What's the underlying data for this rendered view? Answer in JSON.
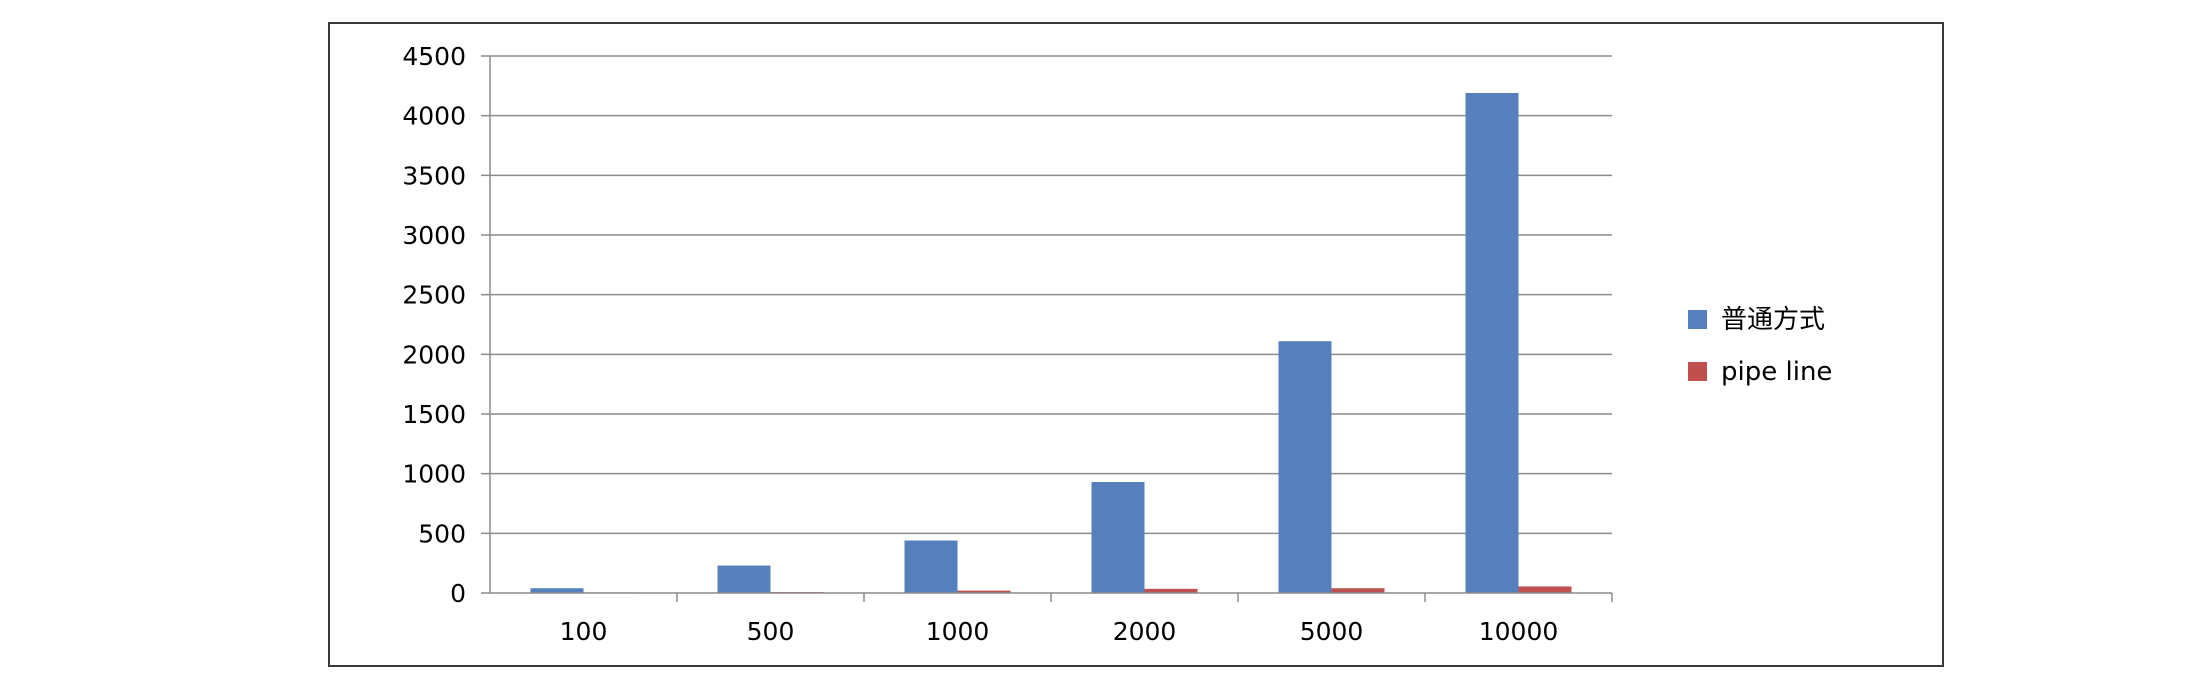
{
  "chart_data": {
    "type": "bar",
    "categories": [
      "100",
      "500",
      "1000",
      "2000",
      "5000",
      "10000"
    ],
    "series": [
      {
        "name": "普通方式",
        "color": "#5680bb",
        "values": [
          40,
          230,
          440,
          930,
          2110,
          4190
        ]
      },
      {
        "name": "pipe line",
        "color": "#c0504d",
        "values": [
          5,
          8,
          20,
          35,
          40,
          55
        ]
      }
    ],
    "yticks": [
      "0",
      "500",
      "1000",
      "1500",
      "2000",
      "2500",
      "3000",
      "3500",
      "4000",
      "4500"
    ],
    "ylim": [
      0,
      4500
    ],
    "grid": true,
    "legend_position": "right"
  }
}
